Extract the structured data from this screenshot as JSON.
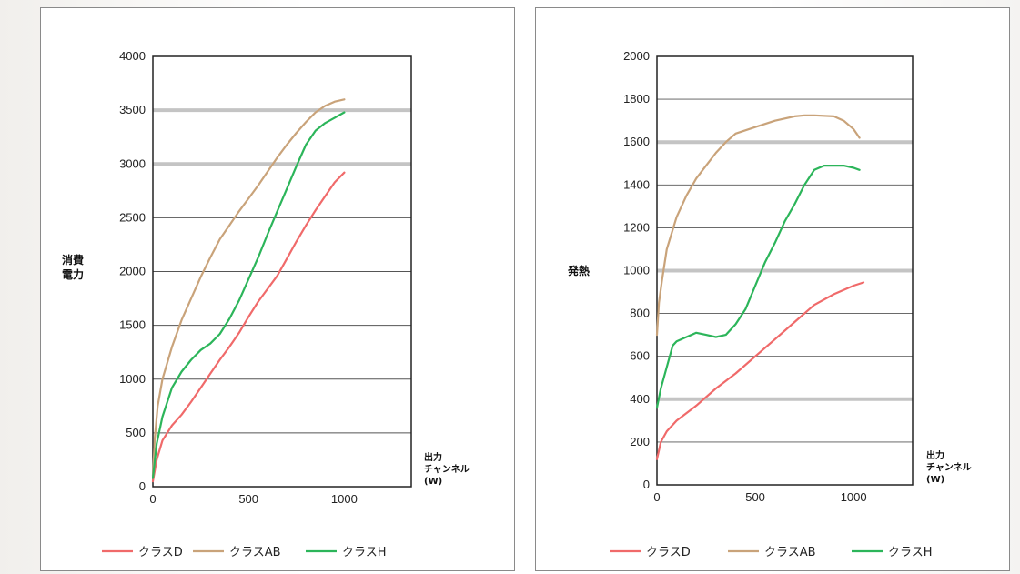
{
  "chart_data": [
    {
      "type": "line",
      "ylabel_lines": [
        "消費",
        "電力"
      ],
      "xlabel_lines": [
        "出力",
        "チャンネル",
        "(W)"
      ],
      "xlim": [
        0,
        1350
      ],
      "ylim": [
        0,
        4000
      ],
      "x_ticks": [
        0,
        500,
        1000
      ],
      "y_ticks": [
        0,
        500,
        1000,
        1500,
        2000,
        2500,
        3000,
        3500,
        4000
      ],
      "highlight_gridlines": [
        3000,
        3500
      ],
      "grid": true,
      "legend_position": "bottom",
      "series": [
        {
          "name": "クラスD",
          "color": "#f06a6a",
          "x": [
            0,
            20,
            50,
            100,
            150,
            200,
            250,
            300,
            350,
            400,
            450,
            500,
            550,
            600,
            650,
            700,
            750,
            800,
            850,
            900,
            950,
            1000
          ],
          "y": [
            50,
            250,
            430,
            570,
            670,
            790,
            920,
            1050,
            1180,
            1300,
            1430,
            1580,
            1720,
            1840,
            1960,
            2120,
            2280,
            2430,
            2570,
            2700,
            2830,
            2920
          ]
        },
        {
          "name": "クラスAB",
          "color": "#c9a37a",
          "x": [
            0,
            10,
            25,
            50,
            100,
            150,
            200,
            250,
            300,
            350,
            400,
            450,
            500,
            550,
            600,
            650,
            700,
            750,
            800,
            850,
            900,
            950,
            1000
          ],
          "y": [
            100,
            450,
            750,
            1000,
            1300,
            1550,
            1750,
            1950,
            2130,
            2300,
            2430,
            2560,
            2680,
            2800,
            2930,
            3060,
            3180,
            3290,
            3390,
            3480,
            3540,
            3580,
            3600
          ]
        },
        {
          "name": "クラスH",
          "color": "#2cb55a",
          "x": [
            0,
            20,
            50,
            100,
            150,
            200,
            250,
            300,
            350,
            400,
            450,
            500,
            550,
            600,
            650,
            700,
            750,
            800,
            850,
            900,
            950,
            1000
          ],
          "y": [
            80,
            400,
            650,
            920,
            1070,
            1180,
            1270,
            1330,
            1420,
            1560,
            1730,
            1930,
            2130,
            2350,
            2560,
            2770,
            2980,
            3180,
            3310,
            3380,
            3430,
            3480
          ]
        }
      ]
    },
    {
      "type": "line",
      "ylabel_lines": [
        "発熱"
      ],
      "xlabel_lines": [
        "出力",
        "チャンネル",
        "(W)"
      ],
      "xlim": [
        0,
        1300
      ],
      "ylim": [
        0,
        2000
      ],
      "x_ticks": [
        0,
        500,
        1000
      ],
      "y_ticks": [
        0,
        200,
        400,
        600,
        800,
        1000,
        1200,
        1400,
        1600,
        1800,
        2000
      ],
      "highlight_gridlines": [
        400,
        1000,
        1600
      ],
      "grid": true,
      "legend_position": "bottom",
      "series": [
        {
          "name": "クラスD",
          "color": "#f06a6a",
          "x": [
            0,
            20,
            50,
            100,
            200,
            300,
            400,
            500,
            600,
            700,
            800,
            900,
            1000,
            1050
          ],
          "y": [
            120,
            200,
            250,
            300,
            370,
            450,
            520,
            600,
            680,
            760,
            840,
            890,
            930,
            945
          ]
        },
        {
          "name": "クラスAB",
          "color": "#c9a37a",
          "x": [
            0,
            10,
            25,
            50,
            100,
            150,
            200,
            250,
            300,
            350,
            400,
            500,
            600,
            700,
            750,
            800,
            900,
            950,
            1000,
            1030
          ],
          "y": [
            700,
            850,
            950,
            1100,
            1250,
            1350,
            1430,
            1490,
            1550,
            1600,
            1640,
            1670,
            1700,
            1720,
            1725,
            1725,
            1720,
            1700,
            1660,
            1620
          ]
        },
        {
          "name": "クラスH",
          "color": "#2cb55a",
          "x": [
            0,
            20,
            50,
            80,
            100,
            150,
            200,
            250,
            300,
            350,
            400,
            450,
            500,
            550,
            600,
            650,
            700,
            750,
            800,
            850,
            900,
            950,
            1000,
            1030
          ],
          "y": [
            360,
            450,
            550,
            650,
            670,
            690,
            710,
            700,
            690,
            700,
            750,
            820,
            930,
            1040,
            1130,
            1230,
            1310,
            1400,
            1470,
            1490,
            1490,
            1490,
            1480,
            1470
          ]
        }
      ]
    }
  ]
}
